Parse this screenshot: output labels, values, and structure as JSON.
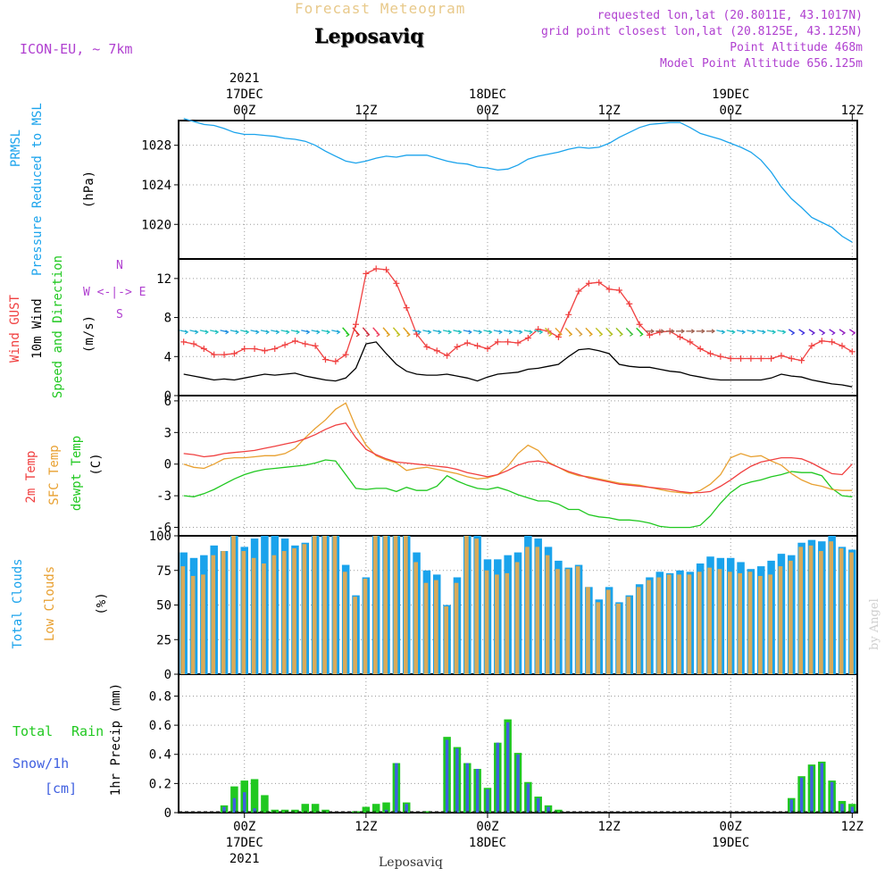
{
  "header": {
    "top_title": "Forecast Meteogram",
    "station": "Leposaviq",
    "model": "ICON-EU, ~ 7km",
    "requested": "requested lon,lat (20.8011E, 43.1017N)",
    "grid_point": "grid point closest lon,lat (20.8125E, 43.125N)",
    "point_alt": "Point Altitude 468m",
    "model_alt": "Model Point Altitude 656.125m",
    "credit": "by Angel",
    "bottom_name": "Leposaviq"
  },
  "time_axis": {
    "top_year": "2021",
    "top_dates": [
      "17DEC",
      "18DEC",
      "19DEC"
    ],
    "top_hours": [
      "00Z",
      "12Z",
      "00Z",
      "12Z",
      "00Z",
      "12Z"
    ],
    "bottom_hours": [
      "00Z",
      "12Z",
      "00Z",
      "12Z",
      "00Z",
      "12Z"
    ],
    "bottom_dates": [
      "17DEC",
      "18DEC",
      "19DEC"
    ],
    "bottom_year": "2021"
  },
  "panels": {
    "pressure": {
      "label1": "PRMSL",
      "label2": "Pressure Reduced to MSL",
      "unit": "(hPa)",
      "yticks": [
        "1028",
        "1024",
        "1020"
      ]
    },
    "wind": {
      "label1": "Wind GUST",
      "label2": "10m Wind",
      "label3": "Speed and Direction",
      "unit": "(m/s)",
      "yticks": [
        "12",
        "8",
        "4",
        "0"
      ],
      "compass": {
        "n": "N",
        "s": "S",
        "w": "W <-|-> E",
        "arrows": "-->"
      }
    },
    "temp": {
      "label1": "2m Temp",
      "label2": "SFC Temp",
      "label3": "dewpt Temp",
      "unit": "(C)",
      "yticks": [
        "6",
        "3",
        "0",
        "-3",
        "-6"
      ]
    },
    "clouds": {
      "label1": "Total Clouds",
      "label2": "Low Clouds",
      "unit": "(%)",
      "yticks": [
        "100",
        "75",
        "50",
        "25",
        "0"
      ]
    },
    "precip": {
      "label_total": "Total",
      "label_rain": "Rain",
      "label_snow": "Snow/1h",
      "label_cm": "[cm]",
      "axis_label": "1hr Precip (mm)",
      "yticks": [
        "0.8",
        "0.6",
        "0.4",
        "0.2",
        "0"
      ]
    }
  },
  "colors": {
    "pressure": "#1aa3ec",
    "gust": "#f04040",
    "wind10m": "#000000",
    "temp2m": "#f04040",
    "sfc": "#e8a030",
    "dewpt": "#20c820",
    "total_cloud": "#1aa3ec",
    "low_cloud": "#d8aa5a",
    "precip": "#20c820",
    "snow": "#4060e0",
    "annot": "#b040d0"
  },
  "chart_data": {
    "type": "line",
    "x_unit": "hours from 2021-12-16 18Z",
    "x_range": [
      0,
      66
    ],
    "pressure": {
      "ylim": [
        1016.5,
        1030.5
      ],
      "values": [
        1030.7,
        1030.4,
        1030.1,
        1030.0,
        1029.7,
        1029.3,
        1029.1,
        1029.1,
        1029.0,
        1028.9,
        1028.7,
        1028.6,
        1028.4,
        1028.0,
        1027.4,
        1026.9,
        1026.4,
        1026.2,
        1026.4,
        1026.7,
        1026.9,
        1026.8,
        1027.0,
        1027.0,
        1027.0,
        1026.7,
        1026.4,
        1026.2,
        1026.1,
        1025.8,
        1025.7,
        1025.5,
        1025.6,
        1026.0,
        1026.6,
        1026.9,
        1027.1,
        1027.3,
        1027.6,
        1027.8,
        1027.7,
        1027.8,
        1028.2,
        1028.8,
        1029.3,
        1029.8,
        1030.1,
        1030.2,
        1030.3,
        1030.3,
        1029.8,
        1029.2,
        1028.9,
        1028.6,
        1028.2,
        1027.8,
        1027.3,
        1026.5,
        1025.3,
        1023.8,
        1022.6,
        1021.7,
        1020.7,
        1020.2,
        1019.7,
        1018.8,
        1018.2
      ]
    },
    "wind": {
      "ylim": [
        0,
        14
      ],
      "gust": [
        5.5,
        5.3,
        4.8,
        4.2,
        4.2,
        4.3,
        4.8,
        4.8,
        4.6,
        4.8,
        5.2,
        5.6,
        5.3,
        5.1,
        3.7,
        3.5,
        4.2,
        7.3,
        12.5,
        13.0,
        12.9,
        11.5,
        9.0,
        6.3,
        5.0,
        4.6,
        4.1,
        5.0,
        5.4,
        5.1,
        4.8,
        5.5,
        5.5,
        5.4,
        5.9,
        6.8,
        6.6,
        6.0,
        8.3,
        10.7,
        11.5,
        11.6,
        10.9,
        10.8,
        9.4,
        7.3,
        6.2,
        6.5,
        6.6,
        6.0,
        5.5,
        4.8,
        4.3,
        4.0,
        3.8,
        3.8,
        3.8,
        3.8,
        3.8,
        4.1,
        3.8,
        3.6,
        5.1,
        5.6,
        5.5,
        5.1,
        4.5
      ],
      "speed": [
        2.2,
        2.0,
        1.8,
        1.6,
        1.7,
        1.6,
        1.8,
        2.0,
        2.2,
        2.1,
        2.2,
        2.3,
        2.0,
        1.8,
        1.6,
        1.5,
        1.8,
        2.8,
        5.3,
        5.5,
        4.3,
        3.2,
        2.5,
        2.2,
        2.1,
        2.1,
        2.2,
        2.0,
        1.8,
        1.5,
        1.9,
        2.2,
        2.3,
        2.4,
        2.7,
        2.8,
        3.0,
        3.2,
        4.0,
        4.7,
        4.8,
        4.6,
        4.3,
        3.2,
        3.0,
        2.9,
        2.9,
        2.7,
        2.5,
        2.4,
        2.1,
        1.9,
        1.7,
        1.6,
        1.6,
        1.6,
        1.6,
        1.6,
        1.8,
        2.2,
        2.0,
        1.9,
        1.6,
        1.4,
        1.2,
        1.1,
        0.9
      ]
    },
    "temperature": {
      "ylim": [
        -6.8,
        6.5
      ],
      "t2m": [
        1.0,
        0.9,
        0.7,
        0.8,
        1.0,
        1.1,
        1.2,
        1.3,
        1.5,
        1.7,
        1.9,
        2.1,
        2.4,
        2.8,
        3.3,
        3.7,
        3.9,
        2.5,
        1.4,
        0.9,
        0.5,
        0.2,
        0.1,
        0.0,
        -0.1,
        -0.2,
        -0.3,
        -0.5,
        -0.8,
        -1.0,
        -1.2,
        -1.0,
        -0.6,
        -0.1,
        0.2,
        0.3,
        0.1,
        -0.3,
        -0.7,
        -1.0,
        -1.3,
        -1.5,
        -1.7,
        -1.9,
        -2.0,
        -2.1,
        -2.2,
        -2.3,
        -2.4,
        -2.6,
        -2.7,
        -2.7,
        -2.6,
        -2.1,
        -1.5,
        -0.8,
        -0.2,
        0.2,
        0.4,
        0.6,
        0.6,
        0.5,
        0.1,
        -0.4,
        -0.9,
        -1.0,
        0.0
      ],
      "sfc": [
        0.0,
        -0.3,
        -0.4,
        0.0,
        0.5,
        0.6,
        0.6,
        0.7,
        0.8,
        0.8,
        1.0,
        1.5,
        2.5,
        3.4,
        4.2,
        5.2,
        5.8,
        3.5,
        1.8,
        0.8,
        0.4,
        0.1,
        -0.6,
        -0.4,
        -0.3,
        -0.5,
        -0.7,
        -0.9,
        -1.2,
        -1.4,
        -1.3,
        -1.0,
        -0.2,
        1.0,
        1.8,
        1.3,
        0.2,
        -0.3,
        -0.8,
        -1.1,
        -1.2,
        -1.4,
        -1.6,
        -1.8,
        -1.9,
        -2.0,
        -2.2,
        -2.4,
        -2.6,
        -2.7,
        -2.8,
        -2.5,
        -1.9,
        -1.0,
        0.6,
        1.0,
        0.7,
        0.8,
        0.3,
        -0.1,
        -0.9,
        -1.5,
        -1.9,
        -2.1,
        -2.4,
        -2.5,
        -2.5
      ],
      "dewpt": [
        -3.0,
        -3.1,
        -2.8,
        -2.4,
        -1.9,
        -1.4,
        -1.0,
        -0.7,
        -0.5,
        -0.4,
        -0.3,
        -0.2,
        -0.1,
        0.1,
        0.4,
        0.3,
        -1.0,
        -2.3,
        -2.4,
        -2.3,
        -2.3,
        -2.6,
        -2.2,
        -2.5,
        -2.5,
        -2.1,
        -1.1,
        -1.6,
        -2.0,
        -2.3,
        -2.4,
        -2.2,
        -2.5,
        -2.9,
        -3.2,
        -3.5,
        -3.5,
        -3.8,
        -4.3,
        -4.3,
        -4.8,
        -5.0,
        -5.1,
        -5.3,
        -5.3,
        -5.4,
        -5.6,
        -5.9,
        -6.0,
        -6.0,
        -6.0,
        -5.8,
        -4.9,
        -3.7,
        -2.7,
        -2.0,
        -1.7,
        -1.5,
        -1.2,
        -1.0,
        -0.7,
        -0.8,
        -0.8,
        -1.1,
        -2.3,
        -3.0,
        -3.1
      ]
    },
    "clouds": {
      "ylim": [
        0,
        100
      ],
      "total": [
        88,
        84,
        86,
        93,
        89,
        100,
        92,
        98,
        100,
        100,
        98,
        93,
        95,
        100,
        100,
        100,
        79,
        57,
        70,
        100,
        100,
        100,
        100,
        88,
        75,
        72,
        50,
        70,
        100,
        100,
        83,
        83,
        86,
        88,
        100,
        98,
        92,
        82,
        77,
        79,
        63,
        54,
        63,
        52,
        57,
        65,
        70,
        74,
        73,
        75,
        74,
        80,
        85,
        84,
        84,
        81,
        76,
        78,
        82,
        87,
        86,
        95,
        97,
        96,
        100,
        92,
        90
      ],
      "low": [
        78,
        71,
        72,
        86,
        89,
        100,
        89,
        84,
        80,
        86,
        89,
        91,
        94,
        100,
        100,
        100,
        74,
        56,
        69,
        100,
        100,
        100,
        100,
        81,
        66,
        68,
        49,
        66,
        100,
        98,
        75,
        72,
        73,
        81,
        92,
        92,
        86,
        76,
        76,
        78,
        63,
        52,
        61,
        51,
        56,
        63,
        68,
        70,
        72,
        72,
        72,
        74,
        77,
        76,
        74,
        73,
        74,
        71,
        72,
        78,
        82,
        92,
        93,
        89,
        96,
        91,
        88
      ]
    },
    "precip": {
      "ylim": [
        0,
        0.95
      ],
      "total": [
        0.0,
        0.0,
        0.0,
        0.0,
        0.05,
        0.18,
        0.22,
        0.23,
        0.12,
        0.02,
        0.02,
        0.02,
        0.06,
        0.06,
        0.02,
        0.0,
        0.0,
        0.01,
        0.04,
        0.06,
        0.07,
        0.34,
        0.07,
        0.0,
        0.01,
        0.0,
        0.52,
        0.45,
        0.34,
        0.3,
        0.17,
        0.48,
        0.64,
        0.41,
        0.21,
        0.11,
        0.05,
        0.02,
        0.0,
        0.0,
        0.0,
        0.0,
        0.0,
        0.0,
        0.0,
        0.0,
        0.0,
        0.0,
        0.0,
        0.0,
        0.0,
        0.0,
        0.0,
        0.0,
        0.0,
        0.0,
        0.0,
        0.0,
        0.0,
        0.0,
        0.1,
        0.25,
        0.33,
        0.35,
        0.22,
        0.08,
        0.06
      ],
      "snow": [
        0.0,
        0.0,
        0.0,
        0.0,
        0.04,
        0.1,
        0.14,
        0.03,
        0.0,
        0.0,
        0.0,
        0.0,
        0.0,
        0.0,
        0.0,
        0.0,
        0.0,
        0.0,
        0.0,
        0.0,
        0.02,
        0.34,
        0.06,
        0.0,
        0.0,
        0.0,
        0.5,
        0.44,
        0.34,
        0.3,
        0.16,
        0.48,
        0.62,
        0.4,
        0.2,
        0.1,
        0.04,
        0.0,
        0.0,
        0.0,
        0.0,
        0.0,
        0.0,
        0.0,
        0.0,
        0.0,
        0.0,
        0.0,
        0.0,
        0.0,
        0.0,
        0.0,
        0.0,
        0.0,
        0.0,
        0.0,
        0.0,
        0.0,
        0.0,
        0.0,
        0.09,
        0.24,
        0.32,
        0.34,
        0.21,
        0.06,
        0.04
      ]
    }
  }
}
